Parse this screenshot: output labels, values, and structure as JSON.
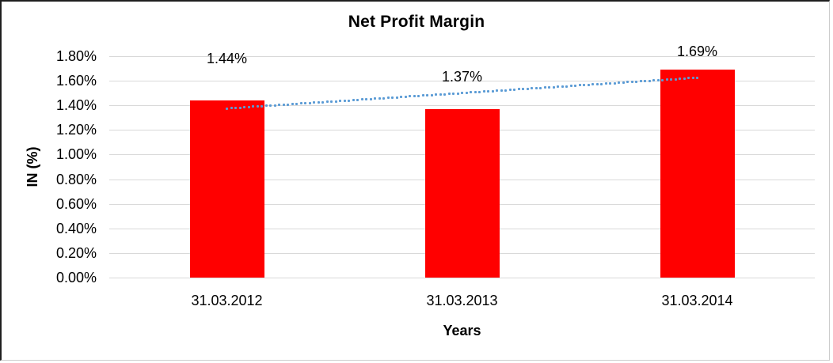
{
  "frame": {
    "background": "#FFFFFF",
    "border_dark": "#1F1F1F",
    "border_light": "#CCCCCC"
  },
  "chart_data": {
    "type": "bar",
    "title": "Net Profit Margin",
    "xlabel": "Years",
    "ylabel": "IN (%)",
    "categories": [
      "31.03.2012",
      "31.03.2013",
      "31.03.2014"
    ],
    "values": [
      1.44,
      1.37,
      1.69
    ],
    "data_labels": [
      "1.44%",
      "1.37%",
      "1.69%"
    ],
    "unit": "percent",
    "ylim": [
      0,
      1.8
    ],
    "ytick_labels": [
      "0.00%",
      "0.20%",
      "0.40%",
      "0.60%",
      "0.80%",
      "1.00%",
      "1.20%",
      "1.40%",
      "1.60%",
      "1.80%"
    ],
    "grid": true,
    "legend": "none",
    "bar_color": "#FF0000",
    "gridline_color": "#D9D9D9",
    "text_color": "#000000",
    "trendline": {
      "type": "linear",
      "style": "dotted",
      "color": "#5B9BD5",
      "fit_endpoint_values": [
        1.375,
        1.625
      ]
    }
  }
}
